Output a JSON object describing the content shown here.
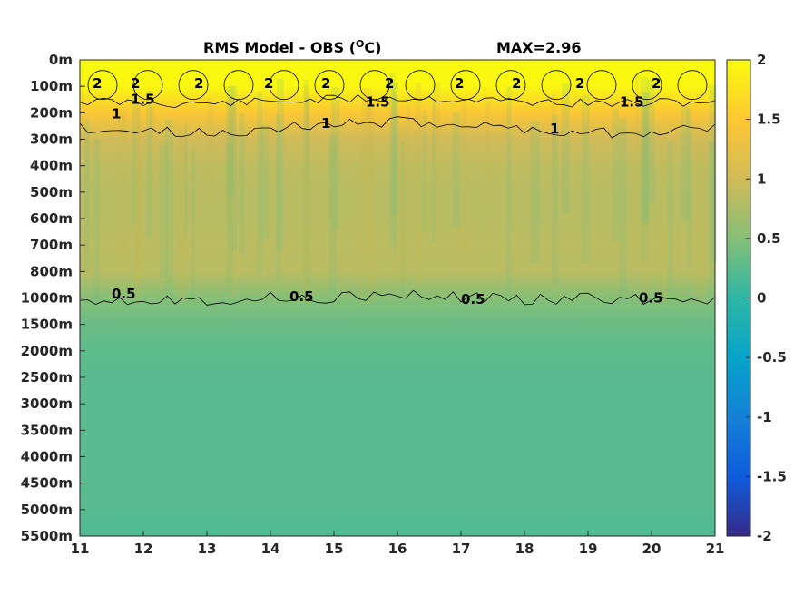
{
  "chart_data": {
    "type": "heatmap",
    "title": "RMS Model - OBS (",
    "title_superscript": "O",
    "title_unit": "C)",
    "max_label": "MAX=2.96",
    "x_ticks": [
      "11",
      "12",
      "13",
      "14",
      "15",
      "16",
      "17",
      "18",
      "19",
      "20",
      "21"
    ],
    "xlim": [
      11,
      21
    ],
    "y_ticks": [
      "0m",
      "100m",
      "200m",
      "300m",
      "400m",
      "500m",
      "600m",
      "700m",
      "800m",
      "1000m",
      "1500m",
      "2000m",
      "2500m",
      "3000m",
      "3500m",
      "4000m",
      "4500m",
      "5000m",
      "5500m"
    ],
    "colorbar": {
      "ticks": [
        "2",
        "1.5",
        "1",
        "0.5",
        "0",
        "-0.5",
        "-1",
        "-1.5",
        "-2"
      ],
      "range": [
        -2,
        2
      ],
      "colormap": "parula"
    },
    "depth_profile": [
      2.2,
      1.95,
      1.45,
      1.0,
      0.88,
      0.84,
      0.84,
      0.86,
      0.84,
      0.5,
      0.34,
      0.27,
      0.25,
      0.24,
      0.24,
      0.24,
      0.24,
      0.23,
      0.18
    ],
    "contour_labels": [
      {
        "text": "2",
        "x": 11.2,
        "level": 1
      },
      {
        "text": "2",
        "x": 11.8,
        "level": 1
      },
      {
        "text": "2",
        "x": 12.8,
        "level": 1
      },
      {
        "text": "2",
        "x": 13.9,
        "level": 1
      },
      {
        "text": "2",
        "x": 14.8,
        "level": 1
      },
      {
        "text": "2",
        "x": 15.8,
        "level": 1
      },
      {
        "text": "2",
        "x": 16.9,
        "level": 1
      },
      {
        "text": "2",
        "x": 17.8,
        "level": 1
      },
      {
        "text": "2",
        "x": 18.8,
        "level": 1
      },
      {
        "text": "2",
        "x": 20.0,
        "level": 1
      },
      {
        "text": "1.5",
        "x": 11.8,
        "level": 1.6
      },
      {
        "text": "1.5",
        "x": 15.5,
        "level": 1.7
      },
      {
        "text": "1.5",
        "x": 19.5,
        "level": 1.7
      },
      {
        "text": "1",
        "x": 11.5,
        "level": 2.15
      },
      {
        "text": "1",
        "x": 14.8,
        "level": 2.5
      },
      {
        "text": "1",
        "x": 18.4,
        "level": 2.7
      },
      {
        "text": "0.5",
        "x": 11.5,
        "level": 8.95
      },
      {
        "text": "0.5",
        "x": 14.3,
        "level": 9.05
      },
      {
        "text": "0.5",
        "x": 17.0,
        "level": 9.15
      },
      {
        "text": "0.5",
        "x": 19.8,
        "level": 9.1
      }
    ]
  }
}
